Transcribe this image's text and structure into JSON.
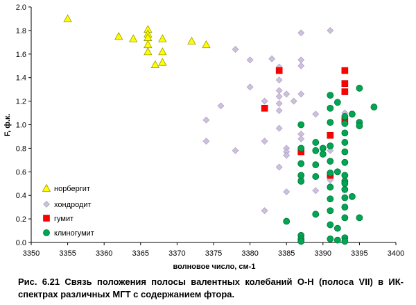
{
  "chart_data": {
    "type": "scatter",
    "xlabel": "волновое число, см-1",
    "ylabel": "F, ф.к.",
    "xlim": [
      3350,
      3400
    ],
    "ylim": [
      0.0,
      2.0
    ],
    "xticks": [
      "3350",
      "3355",
      "3360",
      "3365",
      "3370",
      "3375",
      "3380",
      "3385",
      "3390",
      "3395",
      "3400"
    ],
    "yticks": [
      "0.0",
      "0.2",
      "0.4",
      "0.6",
      "0.8",
      "1.0",
      "1.2",
      "1.4",
      "1.6",
      "1.8",
      "2.0"
    ],
    "grid": false,
    "legend_position": "bottom-left",
    "series": [
      {
        "name": "норбергит",
        "marker": "triangle",
        "color": "#FFFF00",
        "points": [
          [
            3355,
            1.9
          ],
          [
            3362,
            1.75
          ],
          [
            3364,
            1.73
          ],
          [
            3366,
            1.81
          ],
          [
            3366,
            1.77
          ],
          [
            3366,
            1.74
          ],
          [
            3366,
            1.68
          ],
          [
            3366,
            1.62
          ],
          [
            3367,
            1.51
          ],
          [
            3368,
            1.73
          ],
          [
            3368,
            1.62
          ],
          [
            3368,
            1.53
          ],
          [
            3372,
            1.71
          ],
          [
            3374,
            1.68
          ]
        ]
      },
      {
        "name": "хондродит",
        "marker": "diamond",
        "color": "#CCC0DA",
        "points": [
          [
            3374,
            1.04
          ],
          [
            3374,
            0.86
          ],
          [
            3376,
            1.16
          ],
          [
            3378,
            1.64
          ],
          [
            3378,
            0.78
          ],
          [
            3380,
            1.55
          ],
          [
            3380,
            1.32
          ],
          [
            3382,
            1.2
          ],
          [
            3382,
            0.86
          ],
          [
            3382,
            0.27
          ],
          [
            3383,
            1.56
          ],
          [
            3384,
            1.49
          ],
          [
            3384,
            1.38
          ],
          [
            3384,
            1.29
          ],
          [
            3384,
            1.24
          ],
          [
            3384,
            1.18
          ],
          [
            3384,
            1.12
          ],
          [
            3384,
            0.97
          ],
          [
            3384,
            0.64
          ],
          [
            3385,
            1.26
          ],
          [
            3385,
            0.8
          ],
          [
            3385,
            0.77
          ],
          [
            3385,
            0.74
          ],
          [
            3385,
            0.43
          ],
          [
            3386,
            1.2
          ],
          [
            3387,
            1.78
          ],
          [
            3387,
            1.55
          ],
          [
            3387,
            1.5
          ],
          [
            3387,
            1.26
          ],
          [
            3387,
            0.92
          ],
          [
            3387,
            0.88
          ],
          [
            3387,
            0.54
          ],
          [
            3389,
            1.09
          ],
          [
            3389,
            0.44
          ],
          [
            3391,
            1.8
          ],
          [
            3391,
            0.78
          ],
          [
            3391,
            0.53
          ],
          [
            3393,
            1.1
          ]
        ]
      },
      {
        "name": "гумит",
        "marker": "square",
        "color": "#FF0000",
        "points": [
          [
            3382,
            1.14
          ],
          [
            3384,
            1.46
          ],
          [
            3387,
            0.77
          ],
          [
            3391,
            0.91
          ],
          [
            3391,
            0.57
          ],
          [
            3393,
            1.46
          ],
          [
            3393,
            1.35
          ],
          [
            3393,
            1.28
          ],
          [
            3393,
            1.03
          ]
        ]
      },
      {
        "name": "клиногумит",
        "marker": "circle",
        "color": "#00A651",
        "points": [
          [
            3385,
            0.18
          ],
          [
            3387,
            1.0
          ],
          [
            3387,
            0.8
          ],
          [
            3387,
            0.67
          ],
          [
            3387,
            0.57
          ],
          [
            3387,
            0.52
          ],
          [
            3387,
            0.06
          ],
          [
            3387,
            0.03
          ],
          [
            3387,
            0.01
          ],
          [
            3389,
            0.85
          ],
          [
            3389,
            0.78
          ],
          [
            3389,
            0.66
          ],
          [
            3389,
            0.56
          ],
          [
            3389,
            0.24
          ],
          [
            3390,
            0.8
          ],
          [
            3390,
            0.75
          ],
          [
            3391,
            1.25
          ],
          [
            3391,
            1.14
          ],
          [
            3391,
            1.02
          ],
          [
            3391,
            0.82
          ],
          [
            3391,
            0.69
          ],
          [
            3391,
            0.59
          ],
          [
            3391,
            0.47
          ],
          [
            3391,
            0.37
          ],
          [
            3391,
            0.27
          ],
          [
            3391,
            0.15
          ],
          [
            3391,
            0.03
          ],
          [
            3392,
            1.19
          ],
          [
            3392,
            0.6
          ],
          [
            3392,
            0.12
          ],
          [
            3392,
            0.02
          ],
          [
            3393,
            1.07
          ],
          [
            3393,
            1.01
          ],
          [
            3393,
            0.93
          ],
          [
            3393,
            0.85
          ],
          [
            3393,
            0.77
          ],
          [
            3393,
            0.68
          ],
          [
            3393,
            0.57
          ],
          [
            3393,
            0.52
          ],
          [
            3393,
            0.5
          ],
          [
            3393,
            0.45
          ],
          [
            3393,
            0.38
          ],
          [
            3393,
            0.3
          ],
          [
            3393,
            0.21
          ],
          [
            3393,
            0.04
          ],
          [
            3393,
            0.01
          ],
          [
            3394,
            1.09
          ],
          [
            3394,
            0.39
          ],
          [
            3395,
            1.31
          ],
          [
            3395,
            1.02
          ],
          [
            3395,
            0.99
          ],
          [
            3395,
            0.21
          ],
          [
            3397,
            1.15
          ]
        ]
      }
    ]
  },
  "caption": "Рис. 6.21 Связь положения полосы валентных колебаний О-Н (полоса VII) в ИК-спектрах различных МГТ с содержанием фтора."
}
